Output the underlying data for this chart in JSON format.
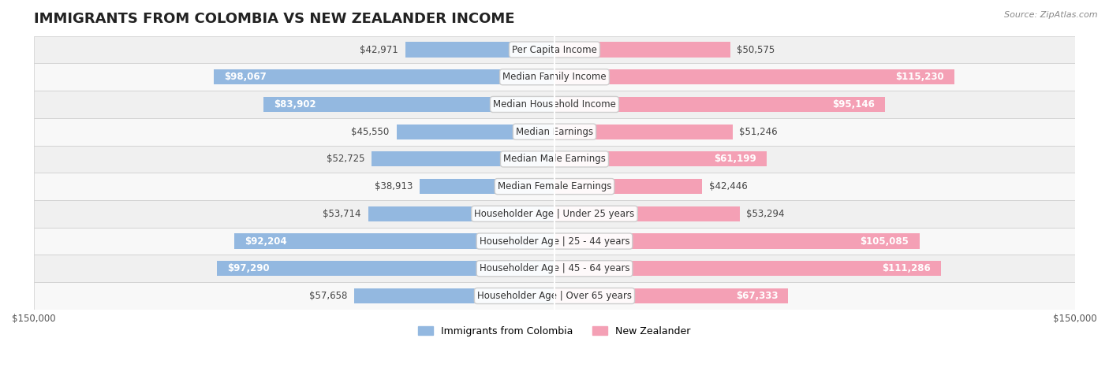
{
  "title": "IMMIGRANTS FROM COLOMBIA VS NEW ZEALANDER INCOME",
  "source": "Source: ZipAtlas.com",
  "categories": [
    "Per Capita Income",
    "Median Family Income",
    "Median Household Income",
    "Median Earnings",
    "Median Male Earnings",
    "Median Female Earnings",
    "Householder Age | Under 25 years",
    "Householder Age | 25 - 44 years",
    "Householder Age | 45 - 64 years",
    "Householder Age | Over 65 years"
  ],
  "colombia_values": [
    42971,
    98067,
    83902,
    45550,
    52725,
    38913,
    53714,
    92204,
    97290,
    57658
  ],
  "nz_values": [
    50575,
    115230,
    95146,
    51246,
    61199,
    42446,
    53294,
    105085,
    111286,
    67333
  ],
  "colombia_color": "#93b8e0",
  "nz_color": "#f4a0b5",
  "colombia_color_dark": "#6a9fd8",
  "nz_color_dark": "#f07090",
  "max_value": 150000,
  "bar_height": 0.55,
  "bg_color": "#f5f5f5",
  "row_bg_color": "#efefef",
  "label_fontsize": 8.5,
  "title_fontsize": 13,
  "legend_fontsize": 9,
  "tick_fontsize": 8.5
}
